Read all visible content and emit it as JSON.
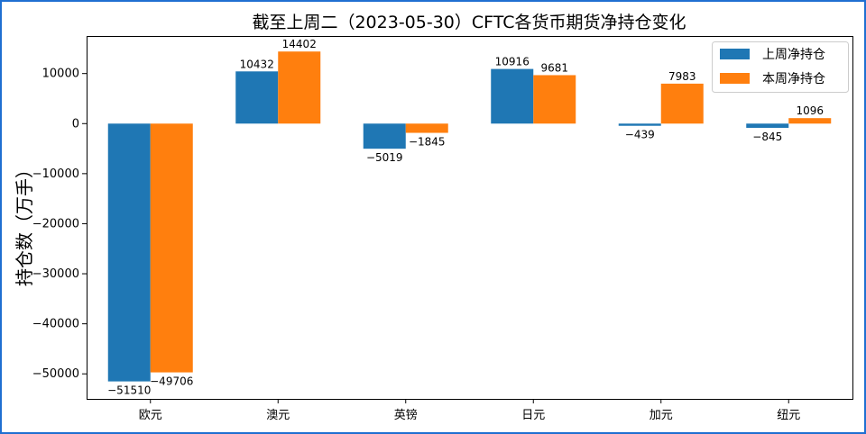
{
  "chart_data": {
    "type": "bar",
    "title": "截至上周二（2023-05-30）CFTC各货币期货净持仓变化",
    "xlabel": "",
    "ylabel": "持仓数（万手）",
    "categories": [
      "欧元",
      "澳元",
      "英镑",
      "日元",
      "加元",
      "纽元"
    ],
    "series": [
      {
        "name": "上周净持仓",
        "color": "#1f77b4",
        "values": [
          -51510,
          10432,
          -5019,
          10916,
          -439,
          -845
        ]
      },
      {
        "name": "本周净持仓",
        "color": "#ff7f0e",
        "values": [
          -49706,
          14402,
          -1845,
          9681,
          7983,
          1096
        ]
      }
    ],
    "ylim": [
      -55000,
      17500
    ],
    "yticks": [
      10000,
      0,
      -10000,
      -20000,
      -30000,
      -40000,
      -50000
    ],
    "ytick_labels": [
      "10000",
      "0",
      "−10000",
      "−20000",
      "−30000",
      "−40000",
      "−50000"
    ],
    "legend_position": "top-right",
    "grid": false
  }
}
